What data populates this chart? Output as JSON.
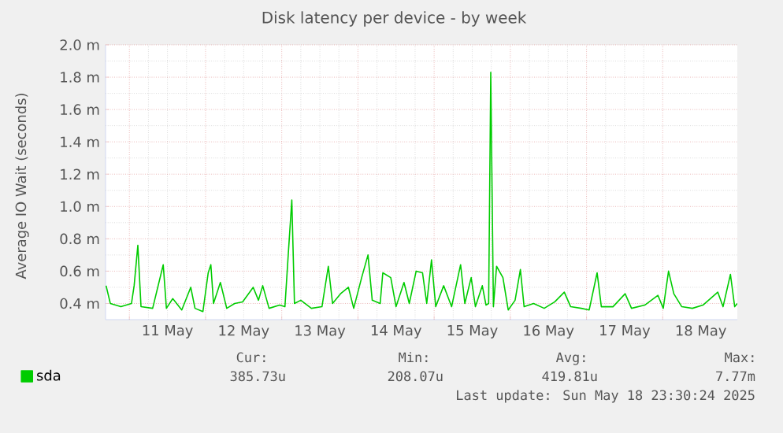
{
  "chart_data": {
    "type": "line",
    "title": "Disk latency per device - by week",
    "ylabel": "Average IO Wait (seconds)",
    "xlim": [
      "2025-05-10T16:30",
      "2025-05-18T23:30"
    ],
    "ylim": [
      0.3,
      2.0
    ],
    "xticks": [
      {
        "value": "2025-05-11T00:00",
        "label": null
      },
      {
        "value": "2025-05-11T12:00",
        "label": "11 May"
      },
      {
        "value": "2025-05-12T00:00",
        "label": null
      },
      {
        "value": "2025-05-12T12:00",
        "label": "12 May"
      },
      {
        "value": "2025-05-13T00:00",
        "label": null
      },
      {
        "value": "2025-05-13T12:00",
        "label": "13 May"
      },
      {
        "value": "2025-05-14T00:00",
        "label": null
      },
      {
        "value": "2025-05-14T12:00",
        "label": "14 May"
      },
      {
        "value": "2025-05-15T00:00",
        "label": null
      },
      {
        "value": "2025-05-15T12:00",
        "label": "15 May"
      },
      {
        "value": "2025-05-16T00:00",
        "label": null
      },
      {
        "value": "2025-05-16T12:00",
        "label": "16 May"
      },
      {
        "value": "2025-05-17T00:00",
        "label": null
      },
      {
        "value": "2025-05-17T12:00",
        "label": "17 May"
      },
      {
        "value": "2025-05-18T00:00",
        "label": null
      },
      {
        "value": "2025-05-18T12:00",
        "label": "18 May"
      }
    ],
    "yticks": [
      {
        "value": 0.4,
        "label": "0.4 m"
      },
      {
        "value": 0.6,
        "label": "0.6 m"
      },
      {
        "value": 0.8,
        "label": "0.8 m"
      },
      {
        "value": 1.0,
        "label": "1.0 m"
      },
      {
        "value": 1.2,
        "label": "1.2 m"
      },
      {
        "value": 1.4,
        "label": "1.4 m"
      },
      {
        "value": 1.6,
        "label": "1.6 m"
      },
      {
        "value": 1.8,
        "label": "1.8 m"
      },
      {
        "value": 2.0,
        "label": "2.0 m"
      }
    ],
    "grid": true,
    "legend": "bottom left",
    "series": [
      {
        "name": "sda",
        "color": "#00cc00",
        "x": [
          "2025-05-10T16:40",
          "2025-05-10T18:00",
          "2025-05-10T21:20",
          "2025-05-11T00:40",
          "2025-05-11T01:30",
          "2025-05-11T02:40",
          "2025-05-11T03:40",
          "2025-05-11T07:20",
          "2025-05-11T10:40",
          "2025-05-11T11:40",
          "2025-05-11T13:40",
          "2025-05-11T16:30",
          "2025-05-11T19:20",
          "2025-05-11T20:40",
          "2025-05-11T23:10",
          "2025-05-12T00:50",
          "2025-05-12T01:40",
          "2025-05-12T02:30",
          "2025-05-12T04:40",
          "2025-05-12T06:40",
          "2025-05-12T09:10",
          "2025-05-12T11:40",
          "2025-05-12T15:00",
          "2025-05-12T16:40",
          "2025-05-12T18:00",
          "2025-05-12T20:00",
          "2025-05-12T23:20",
          "2025-05-13T01:00",
          "2025-05-13T02:10",
          "2025-05-13T03:10",
          "2025-05-13T04:00",
          "2025-05-13T06:00",
          "2025-05-13T09:20",
          "2025-05-13T12:40",
          "2025-05-13T14:40",
          "2025-05-13T16:00",
          "2025-05-13T18:30",
          "2025-05-13T21:00",
          "2025-05-13T22:40",
          "2025-05-14T01:10",
          "2025-05-14T03:10",
          "2025-05-14T04:30",
          "2025-05-14T07:00",
          "2025-05-14T07:50",
          "2025-05-14T10:20",
          "2025-05-14T12:00",
          "2025-05-14T14:30",
          "2025-05-14T16:10",
          "2025-05-14T18:20",
          "2025-05-14T20:20",
          "2025-05-14T21:40",
          "2025-05-14T23:10",
          "2025-05-15T00:30",
          "2025-05-15T03:00",
          "2025-05-15T05:30",
          "2025-05-15T08:20",
          "2025-05-15T09:40",
          "2025-05-15T11:40",
          "2025-05-15T13:00",
          "2025-05-15T15:10",
          "2025-05-15T16:20",
          "2025-05-15T17:10",
          "2025-05-15T17:50",
          "2025-05-15T18:40",
          "2025-05-15T19:40",
          "2025-05-15T21:40",
          "2025-05-15T23:20",
          "2025-05-16T01:30",
          "2025-05-16T03:10",
          "2025-05-16T04:20",
          "2025-05-16T07:20",
          "2025-05-16T10:40",
          "2025-05-16T14:00",
          "2025-05-16T17:00",
          "2025-05-16T19:00",
          "2025-05-16T22:20",
          "2025-05-17T00:50",
          "2025-05-17T03:20",
          "2025-05-17T04:40",
          "2025-05-17T08:20",
          "2025-05-17T12:10",
          "2025-05-17T14:10",
          "2025-05-17T18:20",
          "2025-05-17T22:30",
          "2025-05-18T00:10",
          "2025-05-18T01:50",
          "2025-05-18T03:30",
          "2025-05-18T06:00",
          "2025-05-18T09:20",
          "2025-05-18T12:40",
          "2025-05-18T17:20",
          "2025-05-18T19:00",
          "2025-05-18T21:20",
          "2025-05-18T22:40",
          "2025-05-18T23:30"
        ],
        "values": [
          0.51,
          0.4,
          0.38,
          0.4,
          0.51,
          0.76,
          0.38,
          0.37,
          0.64,
          0.37,
          0.43,
          0.36,
          0.5,
          0.37,
          0.35,
          0.59,
          0.64,
          0.4,
          0.53,
          0.37,
          0.4,
          0.41,
          0.5,
          0.42,
          0.51,
          0.37,
          0.39,
          0.38,
          0.74,
          1.04,
          0.4,
          0.42,
          0.37,
          0.38,
          0.63,
          0.4,
          0.46,
          0.5,
          0.37,
          0.56,
          0.7,
          0.42,
          0.4,
          0.59,
          0.56,
          0.38,
          0.53,
          0.4,
          0.6,
          0.59,
          0.4,
          0.67,
          0.38,
          0.51,
          0.38,
          0.64,
          0.4,
          0.56,
          0.38,
          0.51,
          0.39,
          0.4,
          1.83,
          0.38,
          0.63,
          0.56,
          0.36,
          0.42,
          0.61,
          0.38,
          0.4,
          0.37,
          0.41,
          0.47,
          0.38,
          0.37,
          0.36,
          0.59,
          0.38,
          0.38,
          0.46,
          0.37,
          0.39,
          0.45,
          0.37,
          0.6,
          0.46,
          0.38,
          0.37,
          0.39,
          0.47,
          0.38,
          0.58,
          0.38,
          0.4
        ]
      }
    ],
    "annotations": [
      "Cur:",
      "385.73u",
      "Min:",
      "208.07u",
      "Avg:",
      "419.81u",
      "Max:",
      "7.77m",
      "Last update: Sun May 18 23:30:24 2025"
    ]
  }
}
